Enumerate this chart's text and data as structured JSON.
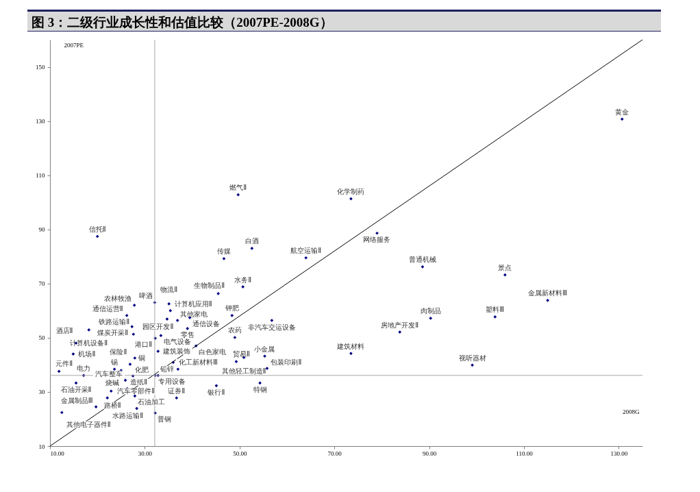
{
  "chart_data": {
    "type": "scatter",
    "title": "图 3：二级行业成长性和估值比较（2007PE-2008G）",
    "xlabel": "2008G",
    "ylabel": "2007PE",
    "xlim": [
      10,
      135
    ],
    "ylim": [
      10,
      160
    ],
    "xticks": [
      {
        "value": 10,
        "label": "10.00"
      },
      {
        "value": 30,
        "label": "30.00"
      },
      {
        "value": 50,
        "label": "50.00"
      },
      {
        "value": 70,
        "label": "70.00"
      },
      {
        "value": 90,
        "label": "90.00"
      },
      {
        "value": 110,
        "label": "110.00"
      },
      {
        "value": 130,
        "label": "130.00"
      }
    ],
    "yticks": [
      10,
      30,
      50,
      70,
      90,
      110,
      130,
      150
    ],
    "grid": false,
    "marker": "diamond",
    "ref_lines": [
      {
        "axis": "x",
        "value": 32.1,
        "color": "#a6a6a6"
      },
      {
        "axis": "y",
        "value": 36.1,
        "color": "#a6a6a6"
      }
    ],
    "series": [
      {
        "color": "#000080",
        "x": [
          130.7,
          49.7,
          73.5,
          20.0,
          79.0,
          52.6,
          46.7,
          64.0,
          88.6,
          106.0,
          50.7,
          45.5,
          115.0,
          27.8,
          32.1,
          35.1,
          35.4,
          26.2,
          34.7,
          36.9,
          39.5,
          48.4,
          56.8,
          90.3,
          103.9,
          27.3,
          39.0,
          18.2,
          83.8,
          27.6,
          33.4,
          49.0,
          32.2,
          15.5,
          40.8,
          32.8,
          73.5,
          14.9,
          55.3,
          50.9,
          27.9,
          49.3,
          36.0,
          26.9,
          99.1,
          55.8,
          37.0,
          23.6,
          25.0,
          11.9,
          17.1,
          32.2,
          32.8,
          27.5,
          25.9,
          15.5,
          45.1,
          54.3,
          26.3,
          22.9,
          27.9,
          36.7,
          22.1,
          19.7,
          28.3,
          12.5,
          32.2
        ],
        "values": [
          130.7,
          102.8,
          101.3,
          87.4,
          88.6,
          83.0,
          79.2,
          79.5,
          76.2,
          73.2,
          68.8,
          66.3,
          63.8,
          62.0,
          63.0,
          62.5,
          60.0,
          58.2,
          56.9,
          56.4,
          57.4,
          58.2,
          56.4,
          57.2,
          57.7,
          54.1,
          53.4,
          52.9,
          52.1,
          51.3,
          50.8,
          50.1,
          49.8,
          48.0,
          47.0,
          45.0,
          44.2,
          44.0,
          43.2,
          42.7,
          42.5,
          41.2,
          40.9,
          40.2,
          39.9,
          38.7,
          38.4,
          38.4,
          37.9,
          37.6,
          36.1,
          36.1,
          36.1,
          35.9,
          34.3,
          33.3,
          32.3,
          33.3,
          31.3,
          30.3,
          28.5,
          27.8,
          27.8,
          24.5,
          23.9,
          22.4,
          22.2
        ]
      },
      {
        "type": "line",
        "marker": "none",
        "color": "#000000",
        "x": [
          10,
          135
        ],
        "values": [
          10,
          160
        ]
      }
    ],
    "annotations": [
      {
        "text": "黄金",
        "x": 130.7,
        "y": 130.7
      },
      {
        "text": "燃气Ⅱ",
        "x": 49.7,
        "y": 102.8
      },
      {
        "text": "化学制药",
        "x": 73.5,
        "y": 101.3
      },
      {
        "text": "信托Ⅱ",
        "x": 20.0,
        "y": 87.4
      },
      {
        "text": "网络服务",
        "x": 79.0,
        "y": 88.6
      },
      {
        "text": "白酒",
        "x": 52.6,
        "y": 83.0
      },
      {
        "text": "传媒",
        "x": 46.7,
        "y": 79.2
      },
      {
        "text": "航空运输Ⅱ",
        "x": 64.0,
        "y": 79.5
      },
      {
        "text": "普通机械",
        "x": 88.6,
        "y": 76.2
      },
      {
        "text": "景点",
        "x": 106.0,
        "y": 73.2
      },
      {
        "text": "水务Ⅱ",
        "x": 50.7,
        "y": 68.8
      },
      {
        "text": "生物制品Ⅱ",
        "x": 45.5,
        "y": 66.3
      },
      {
        "text": "金属新材料Ⅲ",
        "x": 115.0,
        "y": 63.8
      },
      {
        "text": "农林牧渔",
        "x": 27.8,
        "y": 62.0
      },
      {
        "text": "啤酒",
        "x": 32.1,
        "y": 63.0
      },
      {
        "text": "物流Ⅱ",
        "x": 35.1,
        "y": 62.5
      },
      {
        "text": "计算机应用Ⅱ",
        "x": 35.4,
        "y": 60.0
      },
      {
        "text": "通信运营Ⅱ",
        "x": 26.2,
        "y": 58.2
      },
      {
        "text": "园区开发Ⅱ",
        "x": 34.7,
        "y": 56.9
      },
      {
        "text": "其他家电",
        "x": 36.9,
        "y": 56.4
      },
      {
        "text": "通信设备",
        "x": 39.5,
        "y": 57.4
      },
      {
        "text": "钾肥",
        "x": 48.4,
        "y": 58.2
      },
      {
        "text": "非汽车交运设备",
        "x": 56.8,
        "y": 56.4
      },
      {
        "text": "肉制品",
        "x": 90.3,
        "y": 57.2
      },
      {
        "text": "塑料Ⅲ",
        "x": 103.9,
        "y": 57.7
      },
      {
        "text": "煤炭开采Ⅱ",
        "x": 27.3,
        "y": 54.1
      },
      {
        "text": "零售",
        "x": 39.0,
        "y": 53.4
      },
      {
        "text": "计算机设备Ⅱ",
        "x": 18.2,
        "y": 52.9
      },
      {
        "text": "房地产开发Ⅱ",
        "x": 83.8,
        "y": 52.1
      },
      {
        "text": "铁路运输Ⅱ",
        "x": 27.6,
        "y": 51.3
      },
      {
        "text": "电气设备",
        "x": 33.4,
        "y": 50.8
      },
      {
        "text": "农药",
        "x": 49.0,
        "y": 50.1
      },
      {
        "text": "港口Ⅱ",
        "x": 32.2,
        "y": 49.8
      },
      {
        "text": "酒店Ⅱ",
        "x": 15.5,
        "y": 48.0
      },
      {
        "text": "白色家电",
        "x": 40.8,
        "y": 47.0
      },
      {
        "text": "建筑装饰",
        "x": 32.8,
        "y": 45.0
      },
      {
        "text": "建筑材料",
        "x": 73.5,
        "y": 44.2
      },
      {
        "text": "机场Ⅱ",
        "x": 14.9,
        "y": 44.0
      },
      {
        "text": "小金属",
        "x": 55.3,
        "y": 43.2
      },
      {
        "text": "其他轻工制造Ⅱ",
        "x": 50.9,
        "y": 42.7
      },
      {
        "text": "铜",
        "x": 27.9,
        "y": 42.5
      },
      {
        "text": "贸易Ⅱ",
        "x": 49.3,
        "y": 41.2
      },
      {
        "text": "化工新材料Ⅲ",
        "x": 36.0,
        "y": 40.9
      },
      {
        "text": "保险Ⅱ",
        "x": 26.9,
        "y": 40.2
      },
      {
        "text": "视听器材",
        "x": 99.1,
        "y": 39.9
      },
      {
        "text": "包装印刷Ⅱ",
        "x": 55.8,
        "y": 38.7
      },
      {
        "text": "铅锌",
        "x": 37.0,
        "y": 38.4
      },
      {
        "text": "锡",
        "x": 23.6,
        "y": 38.4
      },
      {
        "text": "烧碱",
        "x": 25.0,
        "y": 37.9
      },
      {
        "text": "元件Ⅱ",
        "x": 11.9,
        "y": 37.6
      },
      {
        "text": "电力",
        "x": 17.1,
        "y": 36.1
      },
      {
        "text": "专用设备",
        "x": 32.2,
        "y": 36.1
      },
      {
        "text": "化肥",
        "x": 27.5,
        "y": 35.9
      },
      {
        "text": "汽车整车",
        "x": 25.9,
        "y": 34.3
      },
      {
        "text": "石油开采Ⅱ",
        "x": 15.5,
        "y": 33.3
      },
      {
        "text": "银行Ⅱ",
        "x": 45.1,
        "y": 32.3
      },
      {
        "text": "特钢",
        "x": 54.3,
        "y": 33.3
      },
      {
        "text": "造纸Ⅱ",
        "x": 26.3,
        "y": 31.3
      },
      {
        "text": "汽车零部件Ⅱ",
        "x": 22.9,
        "y": 30.3
      },
      {
        "text": "石油加工",
        "x": 27.9,
        "y": 28.5
      },
      {
        "text": "证券Ⅱ",
        "x": 36.7,
        "y": 27.8
      },
      {
        "text": "路桥Ⅱ",
        "x": 22.1,
        "y": 27.8
      },
      {
        "text": "金属制品Ⅲ",
        "x": 19.7,
        "y": 24.5
      },
      {
        "text": "水路运输Ⅱ",
        "x": 28.3,
        "y": 23.9
      },
      {
        "text": "其他电子器件Ⅱ",
        "x": 12.5,
        "y": 22.4
      },
      {
        "text": "普钢",
        "x": 32.2,
        "y": 22.2
      }
    ]
  }
}
